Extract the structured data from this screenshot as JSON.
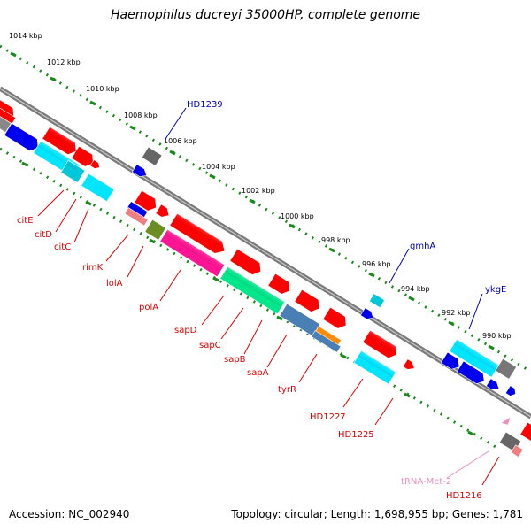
{
  "title": "Haemophilus ducreyi 35000HP, complete genome",
  "footer": {
    "accession": "Accession: NC_002940",
    "summary": "Topology: circular; Length: 1,698,955 bp; Genes: 1,781"
  },
  "colors": {
    "background": "#ffffff",
    "backbone": "#808080",
    "tick_dots": "#1a8a1a",
    "label_red": "#dd0000",
    "label_blue": "#0000bb",
    "label_pink": "#e88fc0"
  },
  "kbp_ticks": [
    "1014 kbp",
    "1012 kbp",
    "1010 kbp",
    "1008 kbp",
    "1006 kbp",
    "1004 kbp",
    "1002 kbp",
    "1000 kbp",
    "998 kbp",
    "996 kbp",
    "994 kbp",
    "992 kbp",
    "990 kbp"
  ],
  "gene_labels": {
    "HD1239": "HD1239",
    "citE": "citE",
    "citD": "citD",
    "citC": "citC",
    "rimK": "rimK",
    "lolA": "lolA",
    "polA": "polA",
    "sapD": "sapD",
    "sapC": "sapC",
    "sapB": "sapB",
    "sapA": "sapA",
    "tyrR": "tyrR",
    "gmhA": "gmhA",
    "ykgE": "ykgE",
    "HD1227": "HD1227",
    "HD1225": "HD1225",
    "tRNA": "tRNA-Met-2",
    "HD1216": "HD1216"
  }
}
